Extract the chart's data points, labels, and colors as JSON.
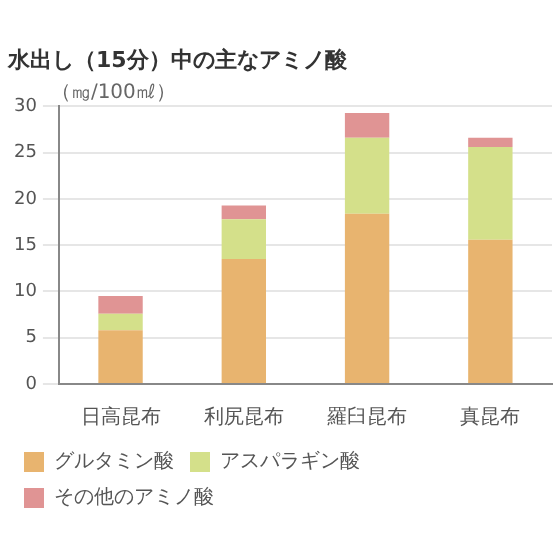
{
  "chart_data": {
    "type": "bar",
    "stacked": true,
    "title": "水出し（15分）中の主なアミノ酸",
    "ylabel": "（㎎/100㎖）",
    "categories": [
      "日高昆布",
      "利尻昆布",
      "羅臼昆布",
      "真昆布"
    ],
    "series": [
      {
        "name": "グルタミン酸",
        "color": "#e8b46f",
        "values": [
          5.8,
          13.5,
          18.4,
          15.6
        ]
      },
      {
        "name": "アスパラギン酸",
        "color": "#d4e08a",
        "values": [
          1.8,
          4.3,
          8.2,
          10.0
        ]
      },
      {
        "name": "その他のアミノ酸",
        "color": "#e09494",
        "values": [
          1.9,
          1.5,
          2.7,
          1.0
        ]
      }
    ],
    "ylim": [
      0,
      30
    ],
    "yticks": [
      0,
      5,
      10,
      15,
      20,
      25,
      30
    ],
    "grid": "y",
    "legend": "bottom"
  }
}
